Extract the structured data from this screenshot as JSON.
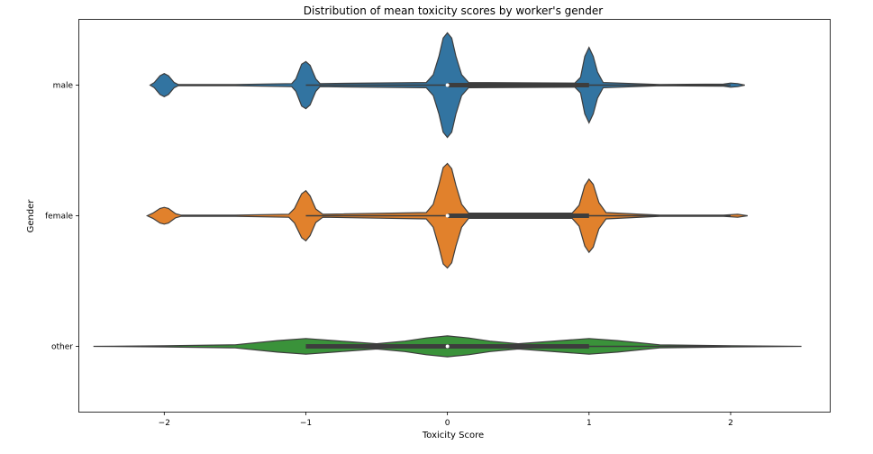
{
  "chart_data": {
    "type": "violin",
    "title": "Distribution of mean toxicity scores by worker's gender",
    "xlabel": "Toxicity Score",
    "ylabel": "Gender",
    "xlim": [
      -2.6,
      2.7
    ],
    "xticks": [
      -2,
      -1,
      0,
      1,
      2
    ],
    "grid": false,
    "orientation": "horizontal",
    "categories": [
      "male",
      "female",
      "other"
    ],
    "series": [
      {
        "name": "male",
        "color": "#3274a1",
        "density": [
          [
            -2.1,
            0
          ],
          [
            -2.07,
            0.05
          ],
          [
            -2.03,
            0.18
          ],
          [
            -2.0,
            0.22
          ],
          [
            -1.97,
            0.18
          ],
          [
            -1.93,
            0.05
          ],
          [
            -1.9,
            0.01
          ],
          [
            -1.5,
            0.01
          ],
          [
            -1.1,
            0.03
          ],
          [
            -1.07,
            0.12
          ],
          [
            -1.03,
            0.4
          ],
          [
            -1.0,
            0.45
          ],
          [
            -0.97,
            0.38
          ],
          [
            -0.93,
            0.12
          ],
          [
            -0.9,
            0.03
          ],
          [
            -0.15,
            0.05
          ],
          [
            -0.1,
            0.2
          ],
          [
            -0.06,
            0.55
          ],
          [
            -0.03,
            0.9
          ],
          [
            0.0,
            1.0
          ],
          [
            0.03,
            0.9
          ],
          [
            0.06,
            0.55
          ],
          [
            0.1,
            0.2
          ],
          [
            0.15,
            0.05
          ],
          [
            0.9,
            0.04
          ],
          [
            0.94,
            0.15
          ],
          [
            0.97,
            0.55
          ],
          [
            1.0,
            0.72
          ],
          [
            1.03,
            0.55
          ],
          [
            1.06,
            0.25
          ],
          [
            1.1,
            0.05
          ],
          [
            1.5,
            0.01
          ],
          [
            1.95,
            0.02
          ],
          [
            2.0,
            0.04
          ],
          [
            2.05,
            0.03
          ],
          [
            2.1,
            0
          ]
        ],
        "median": 0,
        "q1": 0,
        "q3": 1,
        "whisker_low": -1,
        "whisker_high": 2
      },
      {
        "name": "female",
        "color": "#e1812c",
        "density": [
          [
            -2.12,
            0
          ],
          [
            -2.08,
            0.05
          ],
          [
            -2.03,
            0.14
          ],
          [
            -2.0,
            0.16
          ],
          [
            -1.97,
            0.14
          ],
          [
            -1.92,
            0.04
          ],
          [
            -1.88,
            0.01
          ],
          [
            -1.5,
            0.01
          ],
          [
            -1.12,
            0.03
          ],
          [
            -1.08,
            0.14
          ],
          [
            -1.03,
            0.42
          ],
          [
            -1.0,
            0.48
          ],
          [
            -0.97,
            0.38
          ],
          [
            -0.93,
            0.13
          ],
          [
            -0.88,
            0.03
          ],
          [
            -0.15,
            0.06
          ],
          [
            -0.1,
            0.22
          ],
          [
            -0.06,
            0.6
          ],
          [
            -0.03,
            0.92
          ],
          [
            0.0,
            1.0
          ],
          [
            0.03,
            0.9
          ],
          [
            0.06,
            0.58
          ],
          [
            0.1,
            0.22
          ],
          [
            0.15,
            0.05
          ],
          [
            0.88,
            0.05
          ],
          [
            0.93,
            0.2
          ],
          [
            0.97,
            0.58
          ],
          [
            1.0,
            0.7
          ],
          [
            1.03,
            0.6
          ],
          [
            1.07,
            0.25
          ],
          [
            1.12,
            0.06
          ],
          [
            1.5,
            0.01
          ],
          [
            1.95,
            0.01
          ],
          [
            2.05,
            0.03
          ],
          [
            2.12,
            0
          ]
        ],
        "median": 0,
        "q1": 0,
        "q3": 1,
        "whisker_low": -1,
        "whisker_high": 2
      },
      {
        "name": "other",
        "color": "#3a923a",
        "density": [
          [
            -2.5,
            0
          ],
          [
            -2.0,
            0.01
          ],
          [
            -1.5,
            0.03
          ],
          [
            -1.2,
            0.11
          ],
          [
            -1.0,
            0.15
          ],
          [
            -0.8,
            0.11
          ],
          [
            -0.5,
            0.05
          ],
          [
            -0.3,
            0.1
          ],
          [
            -0.15,
            0.16
          ],
          [
            0.0,
            0.2
          ],
          [
            0.15,
            0.16
          ],
          [
            0.3,
            0.1
          ],
          [
            0.5,
            0.05
          ],
          [
            0.8,
            0.11
          ],
          [
            1.0,
            0.15
          ],
          [
            1.2,
            0.11
          ],
          [
            1.5,
            0.03
          ],
          [
            2.0,
            0.01
          ],
          [
            2.5,
            0
          ]
        ],
        "median": 0,
        "q1": -1,
        "q3": 1,
        "whisker_low": -1,
        "whisker_high": 2
      }
    ]
  }
}
